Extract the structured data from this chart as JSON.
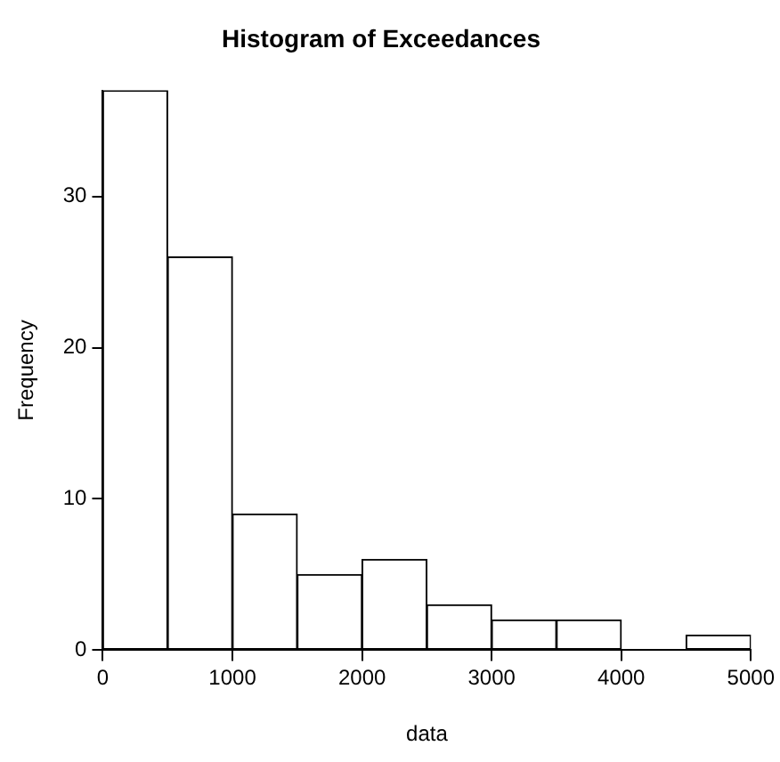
{
  "chart_data": {
    "type": "histogram",
    "title": "Histogram of Exceedances",
    "xlabel": "data",
    "ylabel": "Frequency",
    "bins": [
      0,
      500,
      1000,
      1500,
      2000,
      2500,
      3000,
      3500,
      4000,
      4500,
      5000
    ],
    "values": [
      37,
      26,
      9,
      5,
      6,
      3,
      2,
      2,
      0,
      1
    ],
    "color": "#ffffff",
    "xlim": [
      0,
      5000
    ],
    "xticks": [
      0,
      1000,
      2000,
      3000,
      4000,
      5000
    ],
    "ylim": [
      0,
      37
    ],
    "yticks": [
      0,
      10,
      20,
      30
    ],
    "grid": false,
    "legend": false
  }
}
